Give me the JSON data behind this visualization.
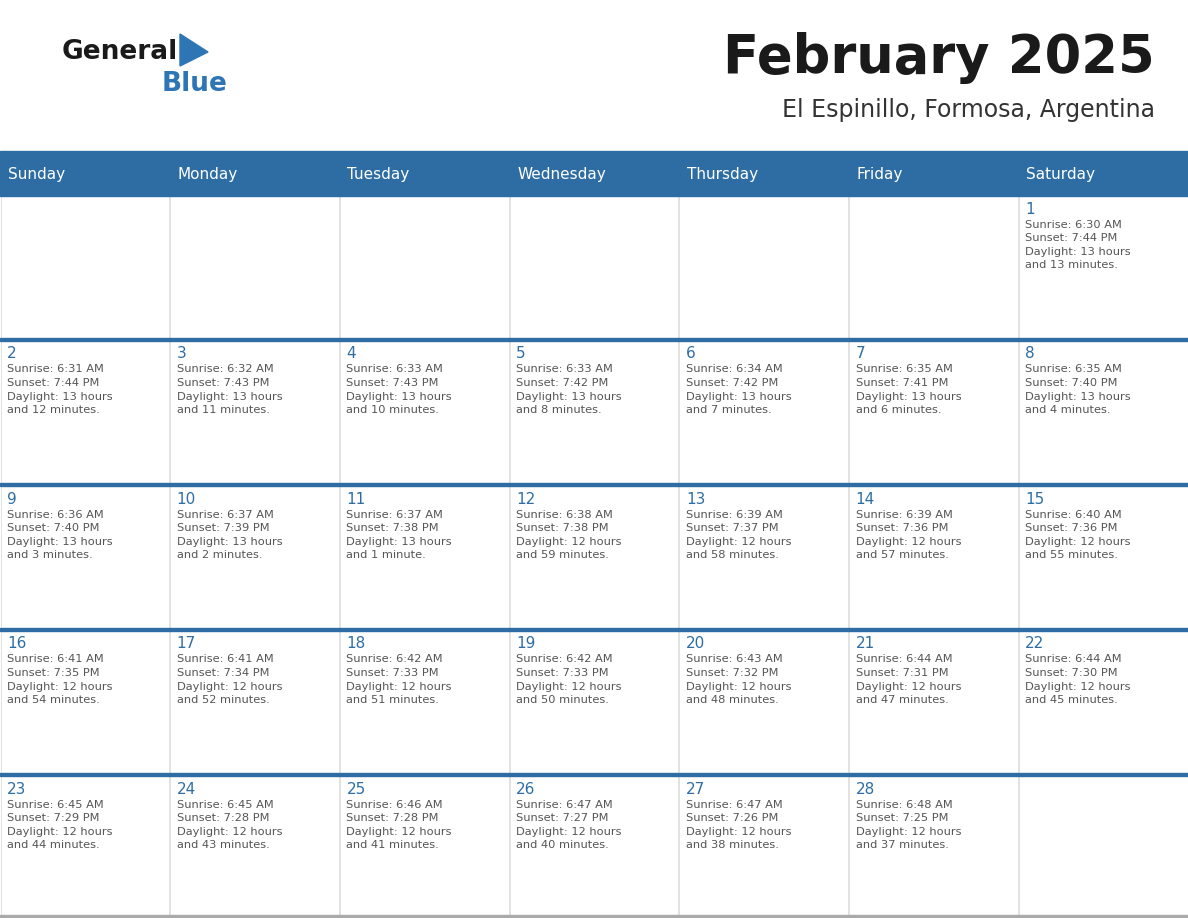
{
  "title": "February 2025",
  "subtitle": "El Espinillo, Formosa, Argentina",
  "days_of_week": [
    "Sunday",
    "Monday",
    "Tuesday",
    "Wednesday",
    "Thursday",
    "Friday",
    "Saturday"
  ],
  "header_bg": "#2E6DA4",
  "header_text_color": "#FFFFFF",
  "cell_bg": "#FFFFFF",
  "day_num_color": "#2E6DA4",
  "text_color": "#555555",
  "border_color": "#AAAAAA",
  "row_border_color": "#2E6DA4",
  "title_color": "#1A1A1A",
  "subtitle_color": "#333333",
  "logo_general_color": "#1A1A1A",
  "logo_blue_color": "#2E75B6",
  "logo_triangle_color": "#2E75B6",
  "weeks": [
    [
      {
        "day": null,
        "info": null
      },
      {
        "day": null,
        "info": null
      },
      {
        "day": null,
        "info": null
      },
      {
        "day": null,
        "info": null
      },
      {
        "day": null,
        "info": null
      },
      {
        "day": null,
        "info": null
      },
      {
        "day": 1,
        "info": "Sunrise: 6:30 AM\nSunset: 7:44 PM\nDaylight: 13 hours\nand 13 minutes."
      }
    ],
    [
      {
        "day": 2,
        "info": "Sunrise: 6:31 AM\nSunset: 7:44 PM\nDaylight: 13 hours\nand 12 minutes."
      },
      {
        "day": 3,
        "info": "Sunrise: 6:32 AM\nSunset: 7:43 PM\nDaylight: 13 hours\nand 11 minutes."
      },
      {
        "day": 4,
        "info": "Sunrise: 6:33 AM\nSunset: 7:43 PM\nDaylight: 13 hours\nand 10 minutes."
      },
      {
        "day": 5,
        "info": "Sunrise: 6:33 AM\nSunset: 7:42 PM\nDaylight: 13 hours\nand 8 minutes."
      },
      {
        "day": 6,
        "info": "Sunrise: 6:34 AM\nSunset: 7:42 PM\nDaylight: 13 hours\nand 7 minutes."
      },
      {
        "day": 7,
        "info": "Sunrise: 6:35 AM\nSunset: 7:41 PM\nDaylight: 13 hours\nand 6 minutes."
      },
      {
        "day": 8,
        "info": "Sunrise: 6:35 AM\nSunset: 7:40 PM\nDaylight: 13 hours\nand 4 minutes."
      }
    ],
    [
      {
        "day": 9,
        "info": "Sunrise: 6:36 AM\nSunset: 7:40 PM\nDaylight: 13 hours\nand 3 minutes."
      },
      {
        "day": 10,
        "info": "Sunrise: 6:37 AM\nSunset: 7:39 PM\nDaylight: 13 hours\nand 2 minutes."
      },
      {
        "day": 11,
        "info": "Sunrise: 6:37 AM\nSunset: 7:38 PM\nDaylight: 13 hours\nand 1 minute."
      },
      {
        "day": 12,
        "info": "Sunrise: 6:38 AM\nSunset: 7:38 PM\nDaylight: 12 hours\nand 59 minutes."
      },
      {
        "day": 13,
        "info": "Sunrise: 6:39 AM\nSunset: 7:37 PM\nDaylight: 12 hours\nand 58 minutes."
      },
      {
        "day": 14,
        "info": "Sunrise: 6:39 AM\nSunset: 7:36 PM\nDaylight: 12 hours\nand 57 minutes."
      },
      {
        "day": 15,
        "info": "Sunrise: 6:40 AM\nSunset: 7:36 PM\nDaylight: 12 hours\nand 55 minutes."
      }
    ],
    [
      {
        "day": 16,
        "info": "Sunrise: 6:41 AM\nSunset: 7:35 PM\nDaylight: 12 hours\nand 54 minutes."
      },
      {
        "day": 17,
        "info": "Sunrise: 6:41 AM\nSunset: 7:34 PM\nDaylight: 12 hours\nand 52 minutes."
      },
      {
        "day": 18,
        "info": "Sunrise: 6:42 AM\nSunset: 7:33 PM\nDaylight: 12 hours\nand 51 minutes."
      },
      {
        "day": 19,
        "info": "Sunrise: 6:42 AM\nSunset: 7:33 PM\nDaylight: 12 hours\nand 50 minutes."
      },
      {
        "day": 20,
        "info": "Sunrise: 6:43 AM\nSunset: 7:32 PM\nDaylight: 12 hours\nand 48 minutes."
      },
      {
        "day": 21,
        "info": "Sunrise: 6:44 AM\nSunset: 7:31 PM\nDaylight: 12 hours\nand 47 minutes."
      },
      {
        "day": 22,
        "info": "Sunrise: 6:44 AM\nSunset: 7:30 PM\nDaylight: 12 hours\nand 45 minutes."
      }
    ],
    [
      {
        "day": 23,
        "info": "Sunrise: 6:45 AM\nSunset: 7:29 PM\nDaylight: 12 hours\nand 44 minutes."
      },
      {
        "day": 24,
        "info": "Sunrise: 6:45 AM\nSunset: 7:28 PM\nDaylight: 12 hours\nand 43 minutes."
      },
      {
        "day": 25,
        "info": "Sunrise: 6:46 AM\nSunset: 7:28 PM\nDaylight: 12 hours\nand 41 minutes."
      },
      {
        "day": 26,
        "info": "Sunrise: 6:47 AM\nSunset: 7:27 PM\nDaylight: 12 hours\nand 40 minutes."
      },
      {
        "day": 27,
        "info": "Sunrise: 6:47 AM\nSunset: 7:26 PM\nDaylight: 12 hours\nand 38 minutes."
      },
      {
        "day": 28,
        "info": "Sunrise: 6:48 AM\nSunset: 7:25 PM\nDaylight: 12 hours\nand 37 minutes."
      },
      {
        "day": null,
        "info": null
      }
    ]
  ]
}
